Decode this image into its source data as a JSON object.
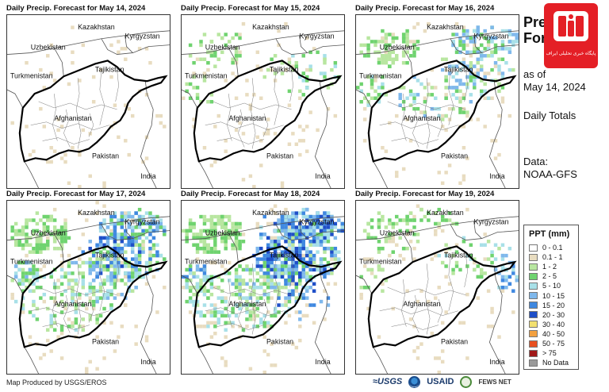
{
  "panels": [
    {
      "title": "Daily Precip. Forecast for May 14, 2024",
      "intensity": 0
    },
    {
      "title": "Daily Precip. Forecast for May 15, 2024",
      "intensity": 1
    },
    {
      "title": "Daily Precip. Forecast for May 16, 2024",
      "intensity": 2
    },
    {
      "title": "Daily Precip. Forecast for May 17, 2024",
      "intensity": 3
    },
    {
      "title": "Daily Precip. Forecast for May 18, 2024",
      "intensity": 4
    },
    {
      "title": "Daily Precip. Forecast for May 19, 2024",
      "intensity": 1
    }
  ],
  "map_labels": {
    "kazakhstan": "Kazakhstan",
    "kyrgyzstan": "Kyrgyzstan",
    "uzbekistan": "Uzbekistan",
    "tajikistan": "Tajikistan",
    "turkmenistan": "Turkmenistan",
    "afghanistan": "Afghanistan",
    "pakistan": "Pakistan",
    "india": "India"
  },
  "side": {
    "title_line1": "Pre",
    "title_line2": "Fore",
    "as_of_line1": "as of",
    "as_of_line2": "May 14, 2024",
    "totals": "Daily Totals",
    "data_line1": "Data:",
    "data_line2": "NOAA-GFS"
  },
  "logo_badge": {
    "text": "پایگاه خبری تحلیلی ایراف",
    "color": "#e41f26"
  },
  "legend": {
    "title": "PPT (mm)",
    "items": [
      {
        "label": "0 - 0.1",
        "color": "#ffffff"
      },
      {
        "label": "0.1 - 1",
        "color": "#e8dcc0"
      },
      {
        "label": "1 - 2",
        "color": "#b8e6a0"
      },
      {
        "label": "2 - 5",
        "color": "#6fd36f"
      },
      {
        "label": "5 - 10",
        "color": "#a8e0e8"
      },
      {
        "label": "10 - 15",
        "color": "#7fb8ec"
      },
      {
        "label": "15 - 20",
        "color": "#3f88e0"
      },
      {
        "label": "20 - 30",
        "color": "#1f4fc8"
      },
      {
        "label": "30 - 40",
        "color": "#f2e070"
      },
      {
        "label": "40 - 50",
        "color": "#f2a040"
      },
      {
        "label": "50 - 75",
        "color": "#e85020"
      },
      {
        "label": "> 75",
        "color": "#a01818"
      },
      {
        "label": "No Data",
        "color": "#999999"
      }
    ]
  },
  "footer": {
    "credit": "Map Produced by USGS/EROS",
    "usgs": "≈USGS",
    "usaid": "USAID",
    "fews": "FEWS NET"
  }
}
